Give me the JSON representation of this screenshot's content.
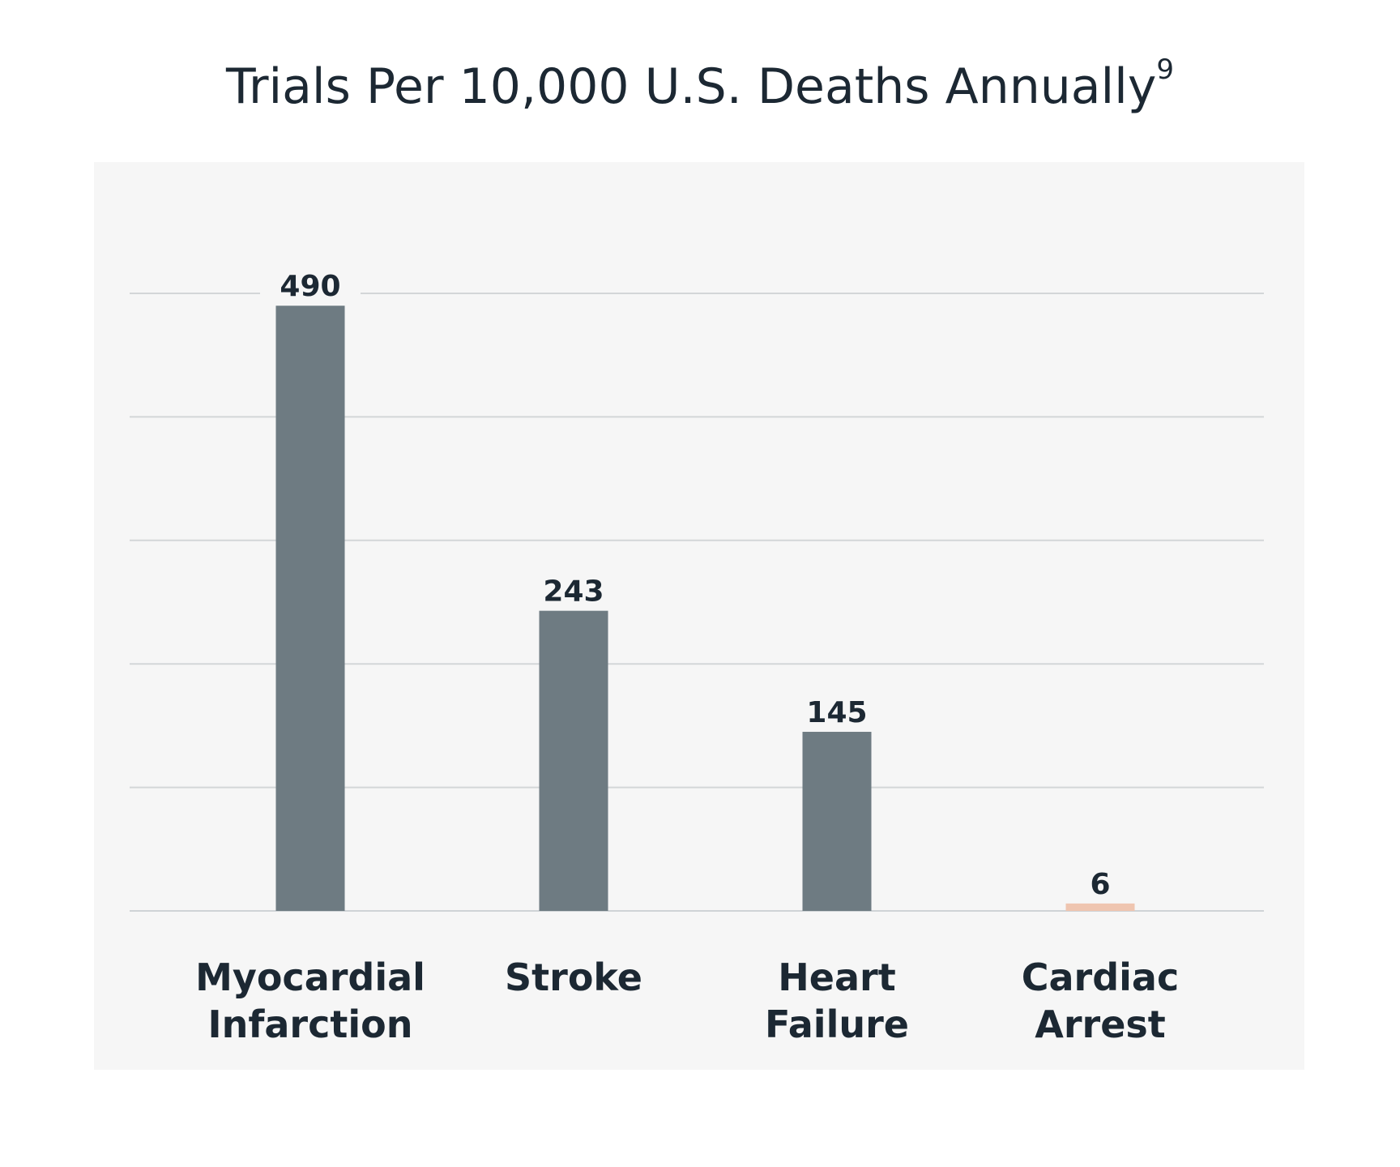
{
  "title": {
    "text": "Trials Per 10,000 U.S. Deaths Annually",
    "superscript": "9"
  },
  "colors": {
    "bar_default": "#6e7b82",
    "bar_highlight": "#efc5b0",
    "panel_background": "#f6f6f6",
    "text": "#1c2833",
    "gridline": "#d3d6d8"
  },
  "chart_data": {
    "type": "bar",
    "title": "Trials Per 10,000 U.S. Deaths Annually⁹",
    "xlabel": "",
    "ylabel": "",
    "categories": [
      [
        "Myocardial",
        "Infarction"
      ],
      [
        "Stroke"
      ],
      [
        "Heart",
        "Failure"
      ],
      [
        "Cardiac",
        "Arrest"
      ]
    ],
    "values": [
      490,
      243,
      145,
      6
    ],
    "data_labels": [
      "490",
      "243",
      "145",
      "6"
    ],
    "highlight_index": 3,
    "ylim": [
      0,
      500
    ],
    "gridlines": [
      0,
      100,
      200,
      300,
      400,
      500
    ],
    "grid": true,
    "y_tick_labels_shown": false,
    "legend": "none"
  }
}
